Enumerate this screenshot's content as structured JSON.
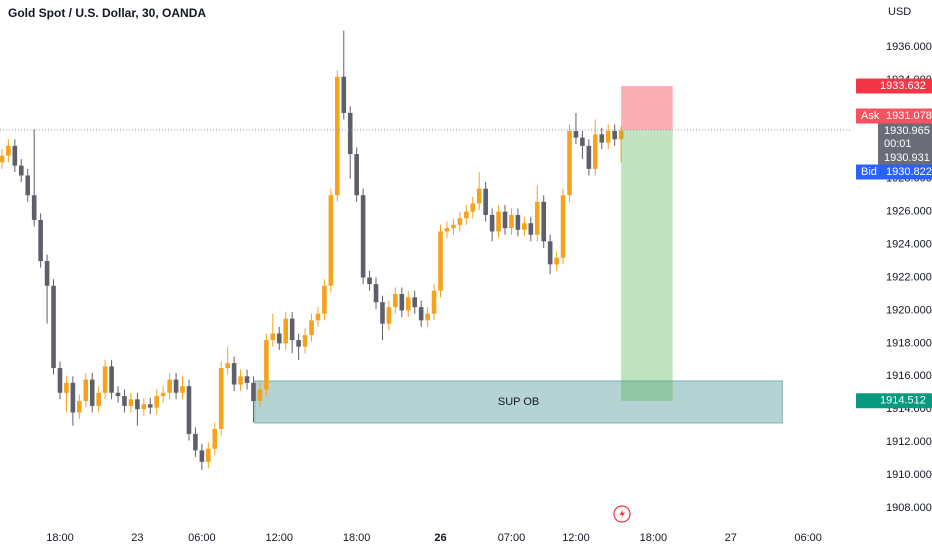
{
  "header": {
    "title": "Gold Spot / U.S. Dollar, 30, OANDA"
  },
  "chart_data": {
    "type": "candlestick",
    "currency": "USD",
    "up_color": "#f7a21b",
    "down_color": "#5d606b",
    "open": [
      1929.0,
      1929.4,
      1930.0,
      1928.8,
      1928.2,
      1927.0,
      1925.5,
      1923.0,
      1921.5,
      1916.5,
      1915.0,
      1915.6,
      1913.8,
      1914.5,
      1915.8,
      1914.2,
      1915.0,
      1916.6,
      1915.0,
      1914.8,
      1914.2,
      1914.6,
      1914.0,
      1914.3,
      1914.1,
      1914.8,
      1915.0,
      1915.8,
      1915.0,
      1915.4,
      1912.5,
      1911.5,
      1910.8,
      1911.6,
      1912.8,
      1916.5,
      1916.8,
      1915.5,
      1916.0,
      1915.6,
      1914.5,
      1915.2,
      1918.2,
      1918.6,
      1918.0,
      1919.5,
      1918.2,
      1917.8,
      1918.5,
      1919.4,
      1919.8,
      1921.5,
      1927.0,
      1934.2,
      1932.0,
      1929.5,
      1927.0,
      1922.0,
      1921.6,
      1920.5,
      1919.2,
      1920.2,
      1921.0,
      1920.0,
      1920.8,
      1920.2,
      1919.4,
      1919.8,
      1921.2,
      1924.8,
      1925.0,
      1925.2,
      1925.6,
      1926.0,
      1926.5,
      1927.4,
      1925.8,
      1924.8,
      1926.0,
      1925.0,
      1925.8,
      1924.9,
      1925.3,
      1924.6,
      1926.6,
      1924.2,
      1922.8,
      1923.2,
      1927.0,
      1930.9,
      1930.5,
      1930.0,
      1928.6,
      1930.7,
      1930.2,
      1930.9,
      1930.4
    ],
    "high": [
      1929.8,
      1930.4,
      1930.4,
      1929.2,
      1928.6,
      1931.0,
      1925.9,
      1923.4,
      1921.9,
      1916.9,
      1916.0,
      1916.0,
      1914.9,
      1916.2,
      1916.2,
      1915.4,
      1917.0,
      1917.0,
      1915.4,
      1915.2,
      1915.0,
      1915.0,
      1914.7,
      1914.7,
      1915.2,
      1915.4,
      1916.2,
      1916.2,
      1916.0,
      1915.8,
      1912.9,
      1911.9,
      1912.0,
      1913.2,
      1916.9,
      1917.8,
      1917.2,
      1916.4,
      1916.4,
      1916.0,
      1915.6,
      1918.6,
      1919.8,
      1919.0,
      1919.9,
      1919.9,
      1918.6,
      1918.9,
      1919.8,
      1920.2,
      1921.9,
      1927.4,
      1934.6,
      1937.0,
      1932.4,
      1929.9,
      1927.4,
      1922.4,
      1922.0,
      1920.9,
      1920.6,
      1921.4,
      1921.4,
      1921.2,
      1921.2,
      1920.6,
      1920.2,
      1921.6,
      1925.2,
      1925.4,
      1925.6,
      1926.0,
      1926.4,
      1926.9,
      1928.4,
      1927.8,
      1926.2,
      1926.4,
      1926.4,
      1926.2,
      1926.2,
      1925.7,
      1925.7,
      1927.6,
      1927.0,
      1924.6,
      1923.6,
      1927.4,
      1931.3,
      1932.0,
      1930.9,
      1930.4,
      1931.6,
      1931.1,
      1931.3,
      1931.3,
      1931.2
    ],
    "low": [
      1928.6,
      1929.0,
      1928.4,
      1927.8,
      1926.6,
      1925.1,
      1922.6,
      1919.2,
      1916.1,
      1914.6,
      1913.8,
      1913.0,
      1913.4,
      1914.1,
      1913.8,
      1913.8,
      1914.6,
      1914.6,
      1914.4,
      1913.8,
      1913.8,
      1913.0,
      1913.6,
      1913.7,
      1913.7,
      1914.4,
      1914.6,
      1914.6,
      1914.6,
      1912.1,
      1911.1,
      1910.3,
      1910.4,
      1911.2,
      1912.4,
      1916.1,
      1915.1,
      1915.1,
      1915.2,
      1913.2,
      1914.1,
      1914.8,
      1917.8,
      1917.6,
      1917.6,
      1917.4,
      1917.0,
      1917.4,
      1918.1,
      1919.0,
      1919.4,
      1921.1,
      1926.6,
      1931.6,
      1928.0,
      1926.6,
      1921.6,
      1921.2,
      1920.1,
      1918.2,
      1918.8,
      1919.8,
      1919.6,
      1919.6,
      1919.8,
      1919.0,
      1919.0,
      1919.4,
      1920.8,
      1924.4,
      1924.6,
      1924.8,
      1925.2,
      1925.6,
      1926.1,
      1925.4,
      1924.2,
      1924.4,
      1924.6,
      1924.6,
      1924.5,
      1924.5,
      1924.2,
      1924.2,
      1923.8,
      1922.2,
      1922.4,
      1922.8,
      1926.6,
      1930.1,
      1929.2,
      1928.2,
      1928.2,
      1929.8,
      1929.8,
      1930.0,
      1929.0
    ],
    "close": [
      1929.4,
      1930.0,
      1928.8,
      1928.2,
      1927.0,
      1925.5,
      1923.0,
      1921.5,
      1916.5,
      1915.0,
      1915.6,
      1913.8,
      1914.5,
      1915.8,
      1914.2,
      1915.0,
      1916.6,
      1915.0,
      1914.8,
      1914.2,
      1914.6,
      1914.0,
      1914.3,
      1914.1,
      1914.8,
      1915.0,
      1915.8,
      1915.0,
      1915.4,
      1912.5,
      1911.5,
      1910.8,
      1911.6,
      1912.8,
      1916.5,
      1916.8,
      1915.5,
      1916.0,
      1915.6,
      1914.5,
      1915.2,
      1918.2,
      1918.6,
      1918.0,
      1919.5,
      1918.2,
      1917.8,
      1918.5,
      1919.4,
      1919.8,
      1921.5,
      1927.0,
      1934.2,
      1932.0,
      1929.5,
      1927.0,
      1922.0,
      1921.6,
      1920.5,
      1919.2,
      1920.2,
      1921.0,
      1920.0,
      1920.8,
      1920.2,
      1919.4,
      1919.8,
      1921.2,
      1924.8,
      1925.0,
      1925.2,
      1925.6,
      1926.0,
      1926.5,
      1927.4,
      1925.8,
      1924.8,
      1926.0,
      1925.0,
      1925.8,
      1924.9,
      1925.3,
      1924.6,
      1926.6,
      1924.2,
      1922.8,
      1923.2,
      1927.0,
      1930.9,
      1930.5,
      1930.0,
      1928.6,
      1930.7,
      1930.2,
      1930.9,
      1930.4,
      1930.931
    ],
    "xlim": [
      -0.3,
      131.8
    ],
    "xticks": [
      {
        "value": 9,
        "label": "18:00"
      },
      {
        "value": 21,
        "label": "23"
      },
      {
        "value": 31,
        "label": "06:00"
      },
      {
        "value": 43,
        "label": "12:00"
      },
      {
        "value": 55,
        "label": "18:00"
      },
      {
        "value": 68,
        "label": "26"
      },
      {
        "value": 79,
        "label": "07:00"
      },
      {
        "value": 89,
        "label": "12:00"
      },
      {
        "value": 101,
        "label": "18:00"
      },
      {
        "value": 113,
        "label": "27"
      },
      {
        "value": 125,
        "label": "06:00"
      }
    ],
    "ylim": [
      1907.27,
      1938.86
    ],
    "yticks": [
      {
        "value": 1908,
        "label": "1908.000"
      },
      {
        "value": 1910,
        "label": "1910.000"
      },
      {
        "value": 1912,
        "label": "1912.000"
      },
      {
        "value": 1914,
        "label": "1914.000"
      },
      {
        "value": 1916,
        "label": "1916.000"
      },
      {
        "value": 1918,
        "label": "1918.000"
      },
      {
        "value": 1920,
        "label": "1920.000"
      },
      {
        "value": 1922,
        "label": "1922.000"
      },
      {
        "value": 1924,
        "label": "1924.000"
      },
      {
        "value": 1926,
        "label": "1926.000"
      },
      {
        "value": 1928,
        "label": "1928.000"
      },
      {
        "value": 1930,
        "label": "1930.000"
      },
      {
        "value": 1932,
        "label": "1932.000"
      },
      {
        "value": 1934,
        "label": "1934.000"
      },
      {
        "value": 1936,
        "label": "1936.000"
      }
    ],
    "position": {
      "stop": 1933.632,
      "entry": 1930.965,
      "target": 1914.512,
      "start": 96,
      "end": 104
    },
    "zone": {
      "label": "SUP OB",
      "top": 1915.72,
      "bottom": 1913.16,
      "start": 39.2,
      "end": 121
    },
    "ask_label": "Ask",
    "ask": 1931.078,
    "bid_label": "Bid",
    "bid": 1930.822,
    "countdown": "00:01"
  }
}
